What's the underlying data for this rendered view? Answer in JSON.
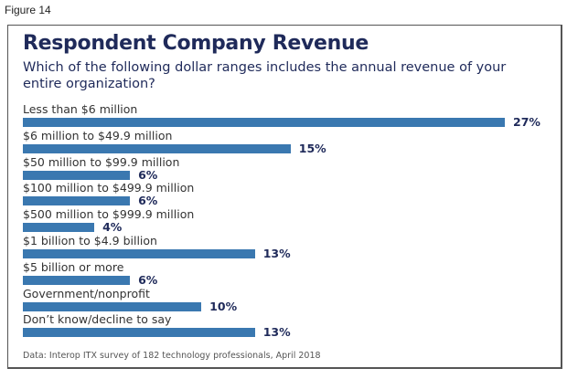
{
  "figure_label": "Figure 14",
  "chart_data": {
    "type": "bar",
    "orientation": "horizontal",
    "title": "Respondent Company Revenue",
    "subtitle": "Which of the following dollar ranges includes the annual revenue of your entire organization?",
    "categories": [
      "Less than $6 million",
      "$6 million to $49.9 million",
      "$50 million to $99.9 million",
      "$100 million to $499.9 million",
      "$500 million to $999.9 million",
      "$1 billion to $4.9 billion",
      "$5 billion or more",
      "Government/nonprofit",
      "Don’t know/decline to say"
    ],
    "values": [
      27,
      15,
      6,
      6,
      4,
      13,
      6,
      10,
      13
    ],
    "value_labels": [
      "27%",
      "15%",
      "6%",
      "6%",
      "4%",
      "13%",
      "6%",
      "10%",
      "13%"
    ],
    "unit": "%",
    "xlim": [
      0,
      27
    ],
    "grid": false,
    "bar_color": "#3a78b0",
    "source": "Data: Interop ITX survey of 182 technology professionals, April 2018"
  }
}
